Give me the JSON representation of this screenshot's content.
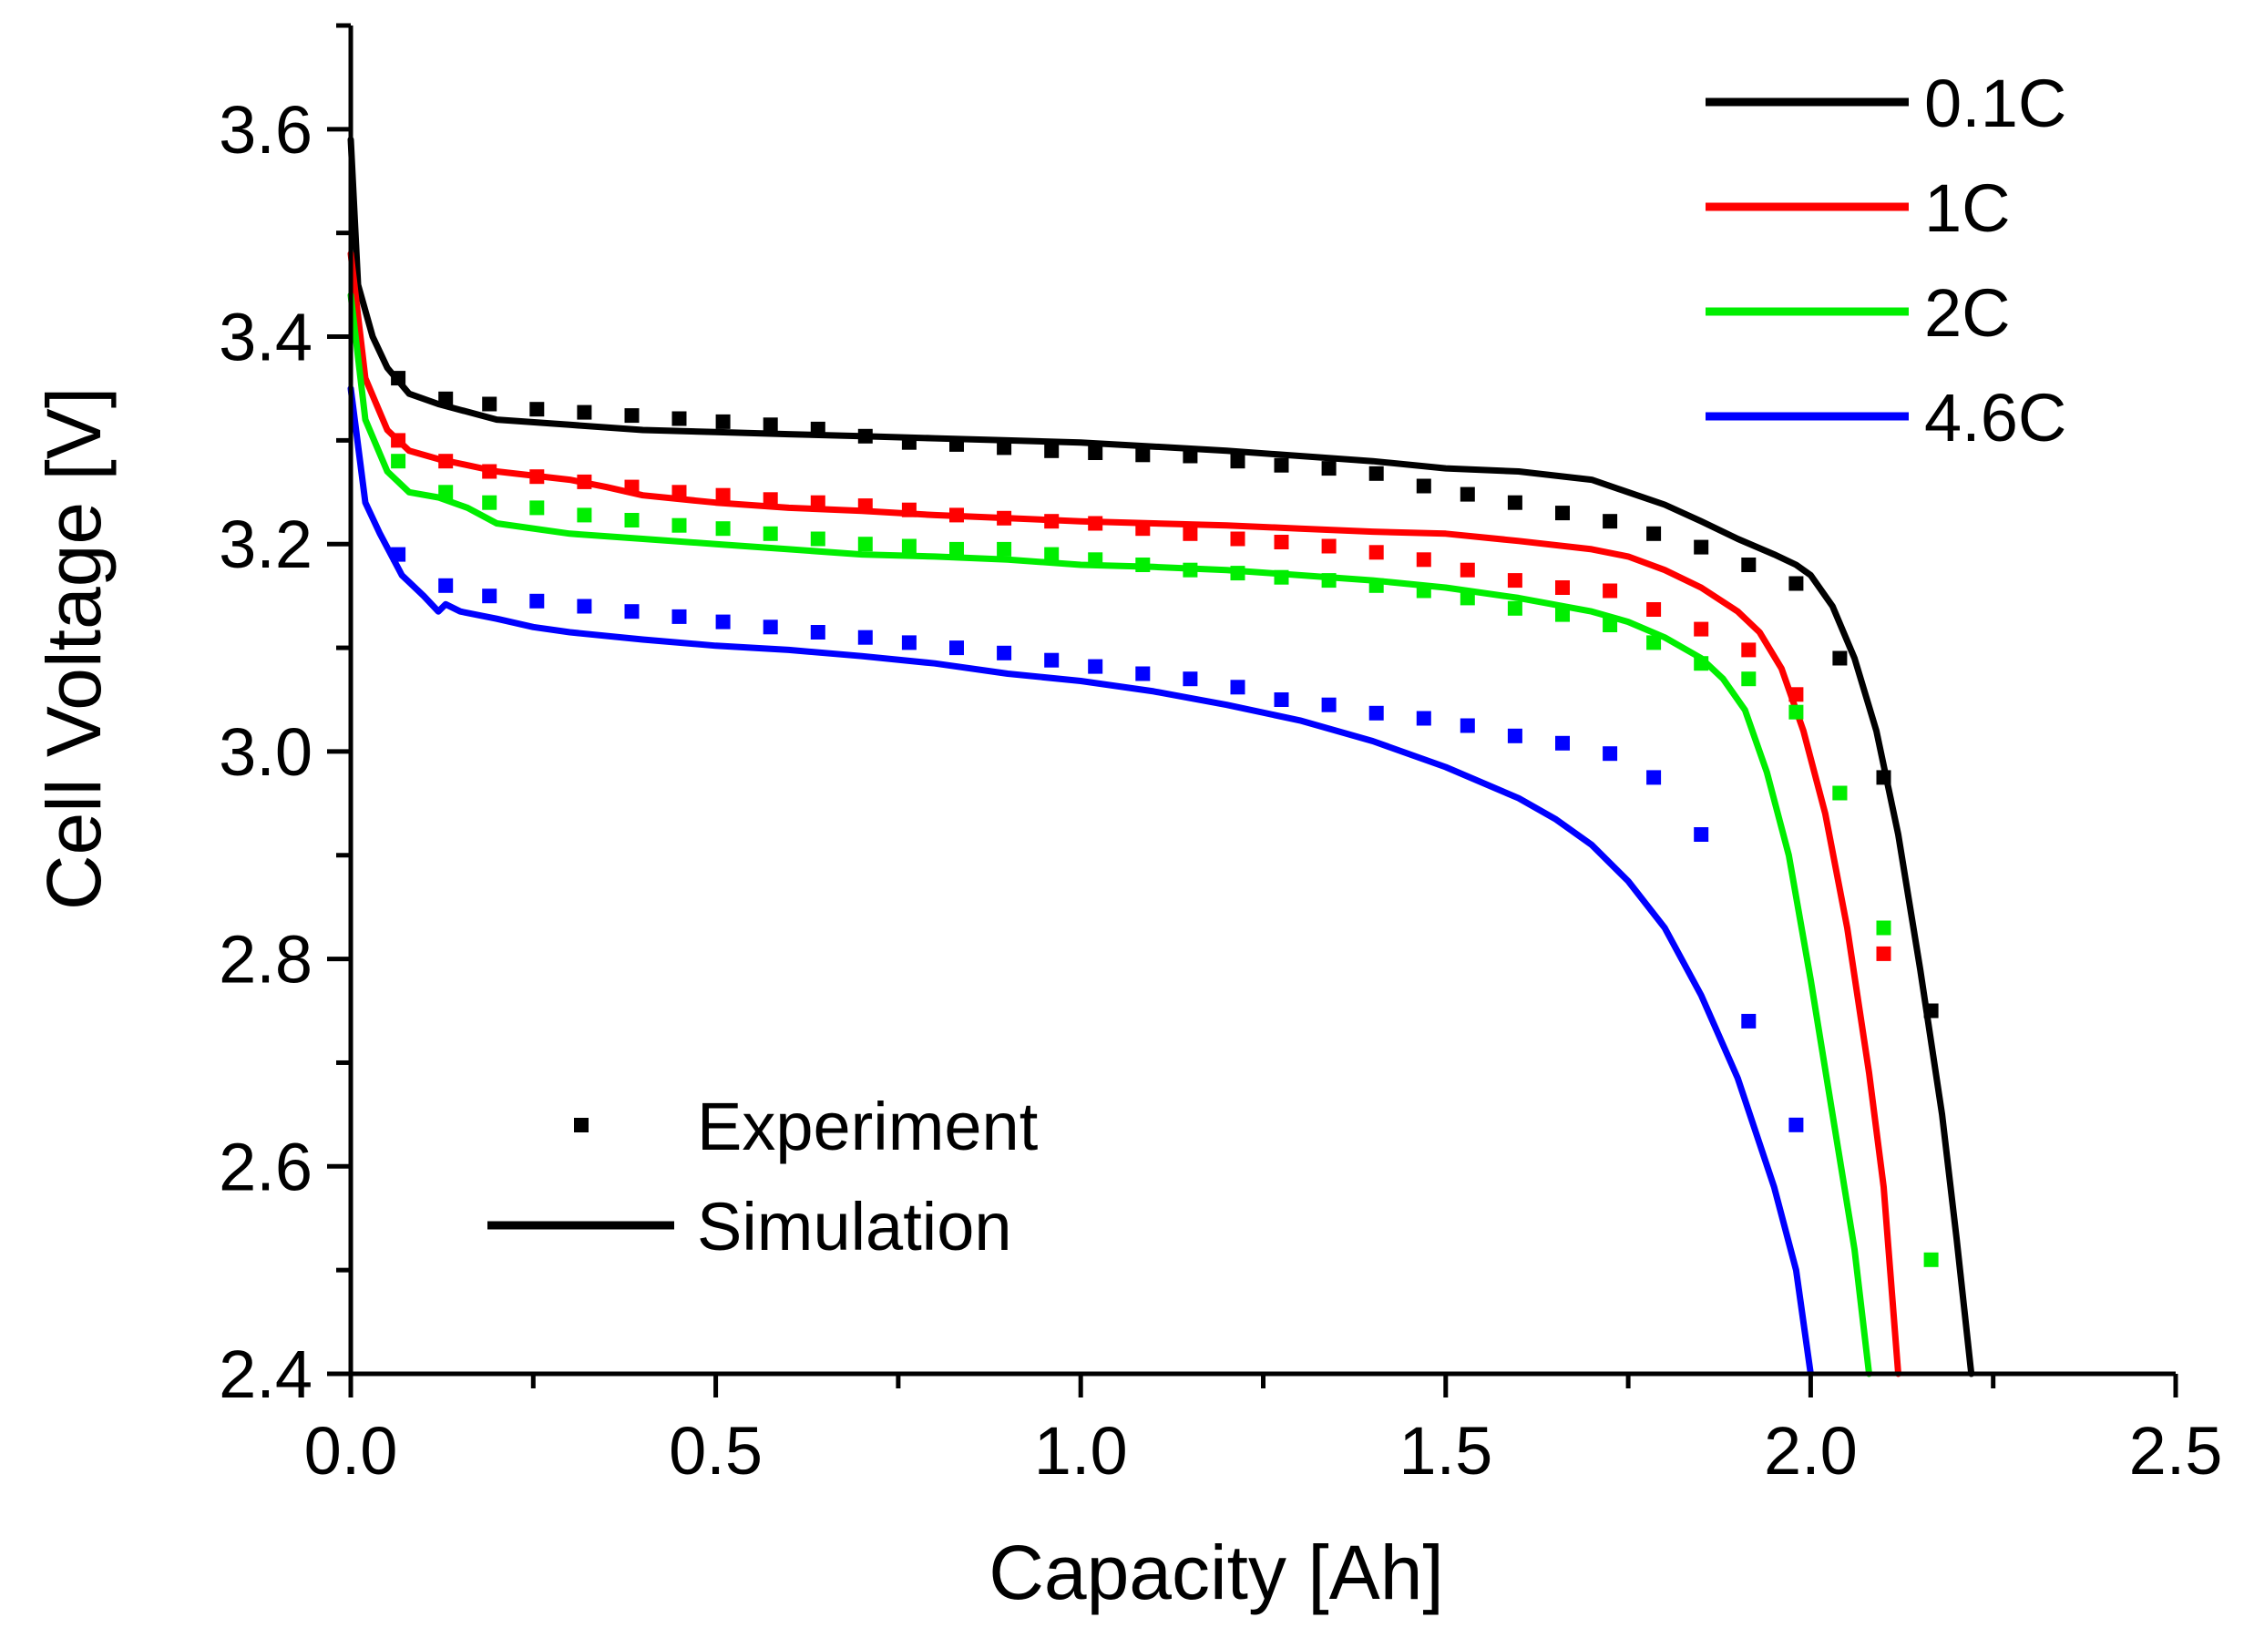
{
  "chart_data": {
    "type": "line",
    "xlabel": "Capacity [Ah]",
    "ylabel": "Cell Voltage [V]",
    "xlim": [
      0.0,
      2.5
    ],
    "ylim": [
      2.4,
      3.7
    ],
    "xticks": [
      "0.0",
      "0.5",
      "1.0",
      "1.5",
      "2.0",
      "2.5"
    ],
    "yticks": [
      "2.4",
      "2.6",
      "2.8",
      "3.0",
      "3.2",
      "3.4",
      "3.6"
    ],
    "grid": false,
    "legend_rates": [
      {
        "label": "0.1C",
        "color": "#000000"
      },
      {
        "label": "1C",
        "color": "#ff0000"
      },
      {
        "label": "2C",
        "color": "#00ee00"
      },
      {
        "label": "4.6C",
        "color": "#0000ff"
      }
    ],
    "legend_types": [
      {
        "label": "Experiment",
        "marker": "square"
      },
      {
        "label": "Simulation",
        "marker": "line"
      }
    ],
    "series": [
      {
        "name": "0.1C",
        "color": "#000000",
        "simulation": [
          [
            0.0,
            3.59
          ],
          [
            0.01,
            3.45
          ],
          [
            0.03,
            3.4
          ],
          [
            0.05,
            3.37
          ],
          [
            0.08,
            3.345
          ],
          [
            0.12,
            3.335
          ],
          [
            0.2,
            3.32
          ],
          [
            0.3,
            3.315
          ],
          [
            0.4,
            3.31
          ],
          [
            0.5,
            3.308
          ],
          [
            0.6,
            3.306
          ],
          [
            0.7,
            3.304
          ],
          [
            0.8,
            3.302
          ],
          [
            0.9,
            3.3
          ],
          [
            1.0,
            3.298
          ],
          [
            1.1,
            3.294
          ],
          [
            1.2,
            3.29
          ],
          [
            1.3,
            3.285
          ],
          [
            1.4,
            3.28
          ],
          [
            1.5,
            3.273
          ],
          [
            1.6,
            3.27
          ],
          [
            1.7,
            3.262
          ],
          [
            1.75,
            3.25
          ],
          [
            1.8,
            3.238
          ],
          [
            1.85,
            3.222
          ],
          [
            1.9,
            3.205
          ],
          [
            1.95,
            3.19
          ],
          [
            1.98,
            3.18
          ],
          [
            2.0,
            3.17
          ],
          [
            2.03,
            3.14
          ],
          [
            2.06,
            3.09
          ],
          [
            2.09,
            3.02
          ],
          [
            2.12,
            2.92
          ],
          [
            2.15,
            2.79
          ],
          [
            2.18,
            2.65
          ],
          [
            2.2,
            2.53
          ],
          [
            2.22,
            2.4
          ]
        ],
        "experiment": [
          [
            0.065,
            3.36
          ],
          [
            0.13,
            3.34
          ],
          [
            0.19,
            3.335
          ],
          [
            0.255,
            3.33
          ],
          [
            0.32,
            3.327
          ],
          [
            0.385,
            3.324
          ],
          [
            0.45,
            3.321
          ],
          [
            0.51,
            3.318
          ],
          [
            0.575,
            3.315
          ],
          [
            0.64,
            3.311
          ],
          [
            0.705,
            3.304
          ],
          [
            0.765,
            3.298
          ],
          [
            0.83,
            3.296
          ],
          [
            0.895,
            3.293
          ],
          [
            0.96,
            3.29
          ],
          [
            1.02,
            3.288
          ],
          [
            1.085,
            3.286
          ],
          [
            1.15,
            3.285
          ],
          [
            1.215,
            3.28
          ],
          [
            1.275,
            3.276
          ],
          [
            1.34,
            3.273
          ],
          [
            1.405,
            3.268
          ],
          [
            1.47,
            3.256
          ],
          [
            1.53,
            3.248
          ],
          [
            1.595,
            3.24
          ],
          [
            1.66,
            3.23
          ],
          [
            1.725,
            3.222
          ],
          [
            1.785,
            3.21
          ],
          [
            1.85,
            3.197
          ],
          [
            1.915,
            3.18
          ],
          [
            1.98,
            3.162
          ],
          [
            2.04,
            3.09
          ],
          [
            2.1,
            2.975
          ],
          [
            2.165,
            2.75
          ]
        ]
      },
      {
        "name": "1C",
        "color": "#ff0000",
        "simulation": [
          [
            0.0,
            3.48
          ],
          [
            0.02,
            3.36
          ],
          [
            0.05,
            3.31
          ],
          [
            0.08,
            3.29
          ],
          [
            0.12,
            3.282
          ],
          [
            0.2,
            3.27
          ],
          [
            0.3,
            3.262
          ],
          [
            0.35,
            3.255
          ],
          [
            0.4,
            3.247
          ],
          [
            0.5,
            3.24
          ],
          [
            0.6,
            3.235
          ],
          [
            0.7,
            3.232
          ],
          [
            0.8,
            3.228
          ],
          [
            0.9,
            3.225
          ],
          [
            1.0,
            3.222
          ],
          [
            1.1,
            3.22
          ],
          [
            1.2,
            3.218
          ],
          [
            1.3,
            3.215
          ],
          [
            1.4,
            3.212
          ],
          [
            1.5,
            3.21
          ],
          [
            1.6,
            3.203
          ],
          [
            1.7,
            3.195
          ],
          [
            1.75,
            3.188
          ],
          [
            1.8,
            3.175
          ],
          [
            1.85,
            3.158
          ],
          [
            1.9,
            3.135
          ],
          [
            1.93,
            3.115
          ],
          [
            1.96,
            3.08
          ],
          [
            1.99,
            3.02
          ],
          [
            2.02,
            2.94
          ],
          [
            2.05,
            2.83
          ],
          [
            2.08,
            2.69
          ],
          [
            2.1,
            2.58
          ],
          [
            2.12,
            2.4
          ]
        ],
        "experiment": [
          [
            0.065,
            3.3
          ],
          [
            0.13,
            3.28
          ],
          [
            0.19,
            3.27
          ],
          [
            0.255,
            3.265
          ],
          [
            0.32,
            3.26
          ],
          [
            0.385,
            3.255
          ],
          [
            0.45,
            3.25
          ],
          [
            0.51,
            3.247
          ],
          [
            0.575,
            3.243
          ],
          [
            0.64,
            3.24
          ],
          [
            0.705,
            3.237
          ],
          [
            0.765,
            3.233
          ],
          [
            0.83,
            3.228
          ],
          [
            0.895,
            3.225
          ],
          [
            0.96,
            3.222
          ],
          [
            1.02,
            3.22
          ],
          [
            1.085,
            3.215
          ],
          [
            1.15,
            3.21
          ],
          [
            1.215,
            3.205
          ],
          [
            1.275,
            3.202
          ],
          [
            1.34,
            3.198
          ],
          [
            1.405,
            3.192
          ],
          [
            1.47,
            3.185
          ],
          [
            1.53,
            3.175
          ],
          [
            1.595,
            3.165
          ],
          [
            1.66,
            3.158
          ],
          [
            1.725,
            3.155
          ],
          [
            1.785,
            3.137
          ],
          [
            1.85,
            3.118
          ],
          [
            1.915,
            3.098
          ],
          [
            1.98,
            3.055
          ],
          [
            2.04,
            2.96
          ],
          [
            2.1,
            2.805
          ]
        ]
      },
      {
        "name": "2C",
        "color": "#00ee00",
        "simulation": [
          [
            0.0,
            3.44
          ],
          [
            0.02,
            3.32
          ],
          [
            0.05,
            3.27
          ],
          [
            0.08,
            3.25
          ],
          [
            0.12,
            3.245
          ],
          [
            0.16,
            3.235
          ],
          [
            0.2,
            3.22
          ],
          [
            0.3,
            3.21
          ],
          [
            0.4,
            3.205
          ],
          [
            0.5,
            3.2
          ],
          [
            0.6,
            3.195
          ],
          [
            0.7,
            3.19
          ],
          [
            0.8,
            3.188
          ],
          [
            0.9,
            3.185
          ],
          [
            1.0,
            3.18
          ],
          [
            1.1,
            3.178
          ],
          [
            1.2,
            3.175
          ],
          [
            1.3,
            3.17
          ],
          [
            1.4,
            3.165
          ],
          [
            1.5,
            3.158
          ],
          [
            1.6,
            3.148
          ],
          [
            1.7,
            3.135
          ],
          [
            1.75,
            3.125
          ],
          [
            1.8,
            3.11
          ],
          [
            1.85,
            3.09
          ],
          [
            1.88,
            3.07
          ],
          [
            1.91,
            3.04
          ],
          [
            1.94,
            2.98
          ],
          [
            1.97,
            2.9
          ],
          [
            2.0,
            2.78
          ],
          [
            2.03,
            2.65
          ],
          [
            2.06,
            2.52
          ],
          [
            2.08,
            2.4
          ]
        ],
        "experiment": [
          [
            0.065,
            3.28
          ],
          [
            0.13,
            3.25
          ],
          [
            0.19,
            3.24
          ],
          [
            0.255,
            3.235
          ],
          [
            0.32,
            3.228
          ],
          [
            0.385,
            3.223
          ],
          [
            0.45,
            3.218
          ],
          [
            0.51,
            3.215
          ],
          [
            0.575,
            3.21
          ],
          [
            0.64,
            3.205
          ],
          [
            0.705,
            3.2
          ],
          [
            0.765,
            3.198
          ],
          [
            0.83,
            3.195
          ],
          [
            0.895,
            3.195
          ],
          [
            0.96,
            3.19
          ],
          [
            1.02,
            3.185
          ],
          [
            1.085,
            3.18
          ],
          [
            1.15,
            3.175
          ],
          [
            1.215,
            3.172
          ],
          [
            1.275,
            3.168
          ],
          [
            1.34,
            3.165
          ],
          [
            1.405,
            3.16
          ],
          [
            1.47,
            3.155
          ],
          [
            1.53,
            3.148
          ],
          [
            1.595,
            3.138
          ],
          [
            1.66,
            3.132
          ],
          [
            1.725,
            3.122
          ],
          [
            1.785,
            3.105
          ],
          [
            1.85,
            3.085
          ],
          [
            1.915,
            3.07
          ],
          [
            1.98,
            3.038
          ],
          [
            2.04,
            2.96
          ],
          [
            2.1,
            2.83
          ],
          [
            2.165,
            2.51
          ]
        ]
      },
      {
        "name": "4.6C",
        "color": "#0000ff",
        "simulation": [
          [
            0.0,
            3.35
          ],
          [
            0.02,
            3.24
          ],
          [
            0.04,
            3.21
          ],
          [
            0.07,
            3.17
          ],
          [
            0.1,
            3.15
          ],
          [
            0.12,
            3.135
          ],
          [
            0.13,
            3.142
          ],
          [
            0.15,
            3.135
          ],
          [
            0.2,
            3.128
          ],
          [
            0.25,
            3.12
          ],
          [
            0.3,
            3.115
          ],
          [
            0.4,
            3.108
          ],
          [
            0.5,
            3.102
          ],
          [
            0.6,
            3.098
          ],
          [
            0.7,
            3.092
          ],
          [
            0.8,
            3.085
          ],
          [
            0.9,
            3.075
          ],
          [
            1.0,
            3.068
          ],
          [
            1.1,
            3.058
          ],
          [
            1.2,
            3.045
          ],
          [
            1.3,
            3.03
          ],
          [
            1.4,
            3.01
          ],
          [
            1.5,
            2.985
          ],
          [
            1.6,
            2.955
          ],
          [
            1.65,
            2.935
          ],
          [
            1.7,
            2.91
          ],
          [
            1.75,
            2.875
          ],
          [
            1.8,
            2.83
          ],
          [
            1.85,
            2.765
          ],
          [
            1.9,
            2.685
          ],
          [
            1.95,
            2.58
          ],
          [
            1.98,
            2.5
          ],
          [
            2.0,
            2.4
          ]
        ],
        "experiment": [
          [
            0.065,
            3.19
          ],
          [
            0.13,
            3.16
          ],
          [
            0.19,
            3.15
          ],
          [
            0.255,
            3.145
          ],
          [
            0.32,
            3.14
          ],
          [
            0.385,
            3.135
          ],
          [
            0.45,
            3.13
          ],
          [
            0.51,
            3.125
          ],
          [
            0.575,
            3.12
          ],
          [
            0.64,
            3.115
          ],
          [
            0.705,
            3.11
          ],
          [
            0.765,
            3.105
          ],
          [
            0.83,
            3.1
          ],
          [
            0.895,
            3.095
          ],
          [
            0.96,
            3.088
          ],
          [
            1.02,
            3.082
          ],
          [
            1.085,
            3.075
          ],
          [
            1.15,
            3.07
          ],
          [
            1.215,
            3.062
          ],
          [
            1.275,
            3.05
          ],
          [
            1.34,
            3.045
          ],
          [
            1.405,
            3.037
          ],
          [
            1.47,
            3.032
          ],
          [
            1.53,
            3.025
          ],
          [
            1.595,
            3.015
          ],
          [
            1.66,
            3.008
          ],
          [
            1.725,
            2.998
          ],
          [
            1.785,
            2.975
          ],
          [
            1.85,
            2.92
          ],
          [
            1.915,
            2.74
          ],
          [
            1.98,
            2.64
          ]
        ]
      }
    ]
  }
}
